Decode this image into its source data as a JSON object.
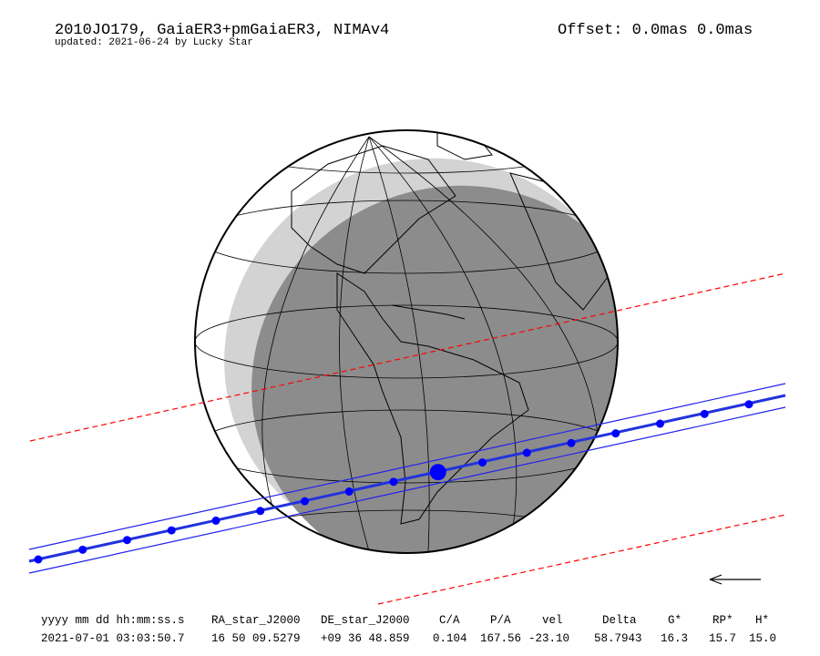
{
  "header": {
    "title": "2010JO179, GaiaER3+pmGaiaER3, NIMAv4",
    "subtitle": "updated: 2021-06-24 by Lucky Star",
    "offset": "Offset: 0.0mas 0.0mas"
  },
  "table": {
    "columns": [
      "yyyy mm dd hh:mm:ss.s",
      "RA_star_J2000",
      "DE_star_J2000",
      "C/A",
      "P/A",
      "vel",
      "Delta",
      "G*",
      "RP*",
      "H*"
    ],
    "rows": [
      [
        "2021-07-01 03:03:50.7",
        "16 50 09.5279",
        "+09 36 48.859",
        "0.104",
        "167.56",
        "-23.10",
        "58.7943",
        "16.3",
        "15.7",
        "15.0"
      ]
    ]
  }
}
